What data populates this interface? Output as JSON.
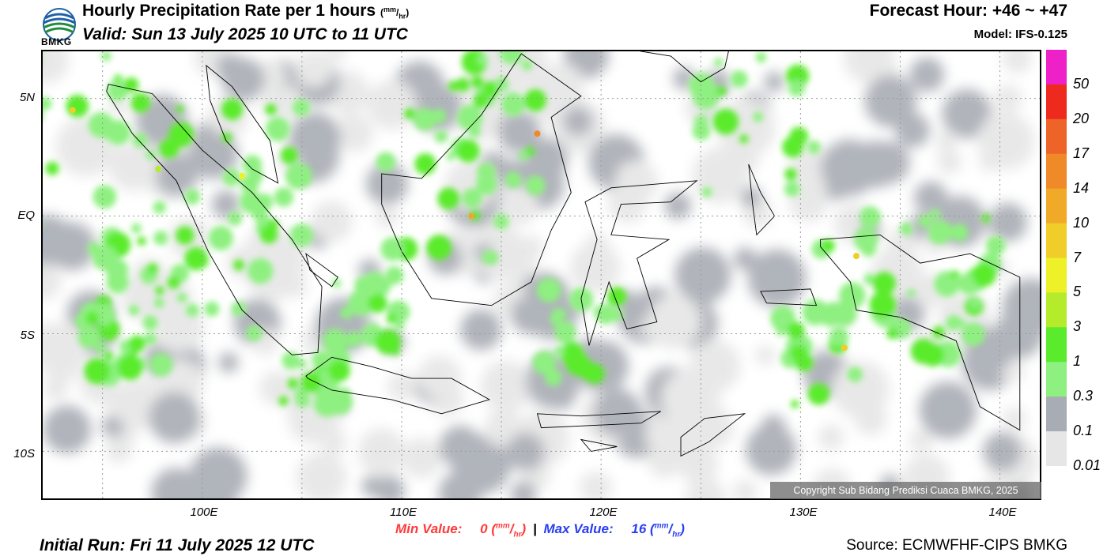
{
  "header": {
    "logo_text": "BMKG",
    "title": "Hourly Precipitation Rate per 1 hours",
    "title_unit_num": "mm",
    "title_unit_den": "hr",
    "valid": "Valid: Sun 13 July 2025 10 UTC to 11 UTC",
    "forecast": "Forecast Hour: +46 ~ +47",
    "model": "Model: IFS-0.125"
  },
  "map": {
    "lat_labels": [
      "5N",
      "EQ",
      "5S",
      "10S"
    ],
    "lon_labels": [
      "100E",
      "110E",
      "120E",
      "130E",
      "140E"
    ],
    "extent": {
      "lon_min": 92,
      "lon_max": 142,
      "lat_min": -12,
      "lat_max": 7
    },
    "copyright": "Copyright Sub Bidang Prediksi Cuaca BMKG, 2025"
  },
  "legend": {
    "levels": [
      "50",
      "20",
      "17",
      "14",
      "10",
      "7",
      "5",
      "3",
      "1",
      "0.3",
      "0.1",
      "0.01"
    ],
    "colors": [
      "#ee20c8",
      "#ee2a1e",
      "#ee6428",
      "#f08a28",
      "#f0aa28",
      "#f0cd28",
      "#eef028",
      "#b4ec2c",
      "#5aeb2c",
      "#8ef080",
      "#a8acb4",
      "#e6e6e6"
    ]
  },
  "stats": {
    "min_label": "Min Value:",
    "min_value": "0",
    "max_label": "Max Value:",
    "max_value": "16",
    "separator": "|",
    "unit_num": "mm",
    "unit_den": "hr"
  },
  "footer": {
    "initial_run": "Initial Run: Fri 11 July 2025 12 UTC",
    "source": "Source: ECMWFHF-CIPS BMKG"
  }
}
